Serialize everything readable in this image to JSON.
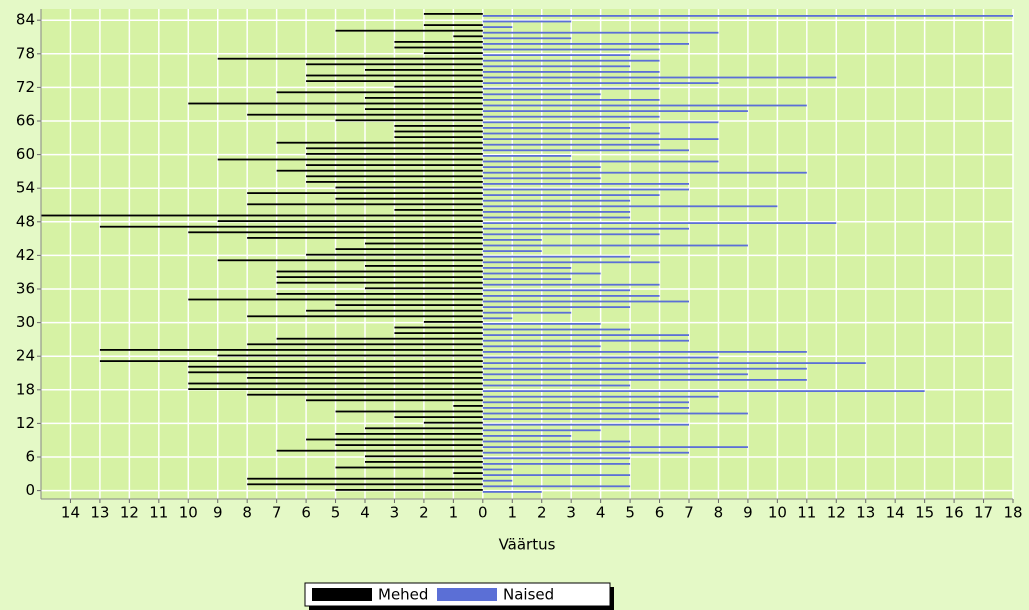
{
  "chart_data": {
    "type": "bar",
    "orientation": "horizontal",
    "x_label": "Väärtus",
    "y": [
      0,
      1,
      2,
      3,
      4,
      5,
      6,
      7,
      8,
      9,
      10,
      11,
      12,
      13,
      14,
      15,
      16,
      17,
      18,
      19,
      20,
      21,
      22,
      23,
      24,
      25,
      26,
      27,
      28,
      29,
      30,
      31,
      32,
      33,
      34,
      35,
      36,
      37,
      38,
      39,
      40,
      41,
      42,
      43,
      44,
      45,
      46,
      47,
      48,
      49,
      50,
      51,
      52,
      53,
      54,
      55,
      56,
      57,
      58,
      59,
      60,
      61,
      62,
      63,
      64,
      65,
      66,
      67,
      68,
      69,
      70,
      71,
      72,
      73,
      74,
      75,
      76,
      77,
      78,
      79,
      80,
      81,
      82,
      83,
      84,
      85
    ],
    "series": [
      {
        "name": "Mehed",
        "color": "#000000",
        "values": [
          -5,
          -8,
          -8,
          -1,
          -5,
          -4,
          -4,
          -7,
          -5,
          -6,
          -5,
          -4,
          -2,
          -3,
          -5,
          -1,
          -6,
          -8,
          -10,
          -10,
          -8,
          -10,
          -10,
          -13,
          -9,
          -13,
          -8,
          -7,
          -3,
          -3,
          -2,
          -8,
          -6,
          -5,
          -10,
          -7,
          -4,
          -7,
          -7,
          -7,
          -4,
          -9,
          -6,
          -5,
          -4,
          -8,
          -10,
          -13,
          -9,
          -15,
          -3,
          -8,
          -5,
          -8,
          -5,
          -6,
          -6,
          -7,
          -6,
          -9,
          -6,
          -6,
          -7,
          -3,
          -3,
          -3,
          -5,
          -8,
          -4,
          -10,
          -4,
          -7,
          -3,
          -6,
          -6,
          -4,
          -6,
          -9,
          -2,
          -3,
          -3,
          -1,
          -5,
          -2,
          0,
          -2
        ]
      },
      {
        "name": "Naised",
        "color": "#5b6fd6",
        "values": [
          2,
          5,
          1,
          5,
          1,
          5,
          5,
          7,
          9,
          5,
          3,
          4,
          7,
          6,
          9,
          7,
          7,
          8,
          15,
          5,
          11,
          9,
          11,
          13,
          8,
          11,
          4,
          7,
          7,
          5,
          4,
          1,
          3,
          5,
          7,
          6,
          5,
          6,
          3,
          4,
          3,
          6,
          5,
          2,
          9,
          2,
          6,
          7,
          12,
          5,
          5,
          10,
          5,
          6,
          7,
          7,
          4,
          11,
          4,
          8,
          3,
          7,
          6,
          8,
          6,
          5,
          8,
          6,
          9,
          11,
          6,
          4,
          6,
          8,
          12,
          6,
          5,
          6,
          5,
          6,
          7,
          3,
          8,
          1,
          3,
          18
        ]
      }
    ],
    "xlim": [
      -15,
      18
    ],
    "xticks": [
      {
        "value": -14,
        "label": "14"
      },
      {
        "value": -13,
        "label": "13"
      },
      {
        "value": -12,
        "label": "12"
      },
      {
        "value": -11,
        "label": "11"
      },
      {
        "value": -10,
        "label": "10"
      },
      {
        "value": -9,
        "label": "9"
      },
      {
        "value": -8,
        "label": "8"
      },
      {
        "value": -7,
        "label": "7"
      },
      {
        "value": -6,
        "label": "6"
      },
      {
        "value": -5,
        "label": "5"
      },
      {
        "value": -4,
        "label": "4"
      },
      {
        "value": -3,
        "label": "3"
      },
      {
        "value": -2,
        "label": "2"
      },
      {
        "value": -1,
        "label": "1"
      },
      0,
      1,
      2,
      3,
      4,
      5,
      6,
      7,
      8,
      9,
      10,
      11,
      12,
      13,
      14,
      15,
      16,
      17,
      18
    ],
    "ylim": [
      -1.5,
      86
    ],
    "yticks": [
      0,
      6,
      12,
      18,
      24,
      30,
      36,
      42,
      48,
      54,
      60,
      66,
      72,
      78,
      84
    ],
    "grid": true
  }
}
